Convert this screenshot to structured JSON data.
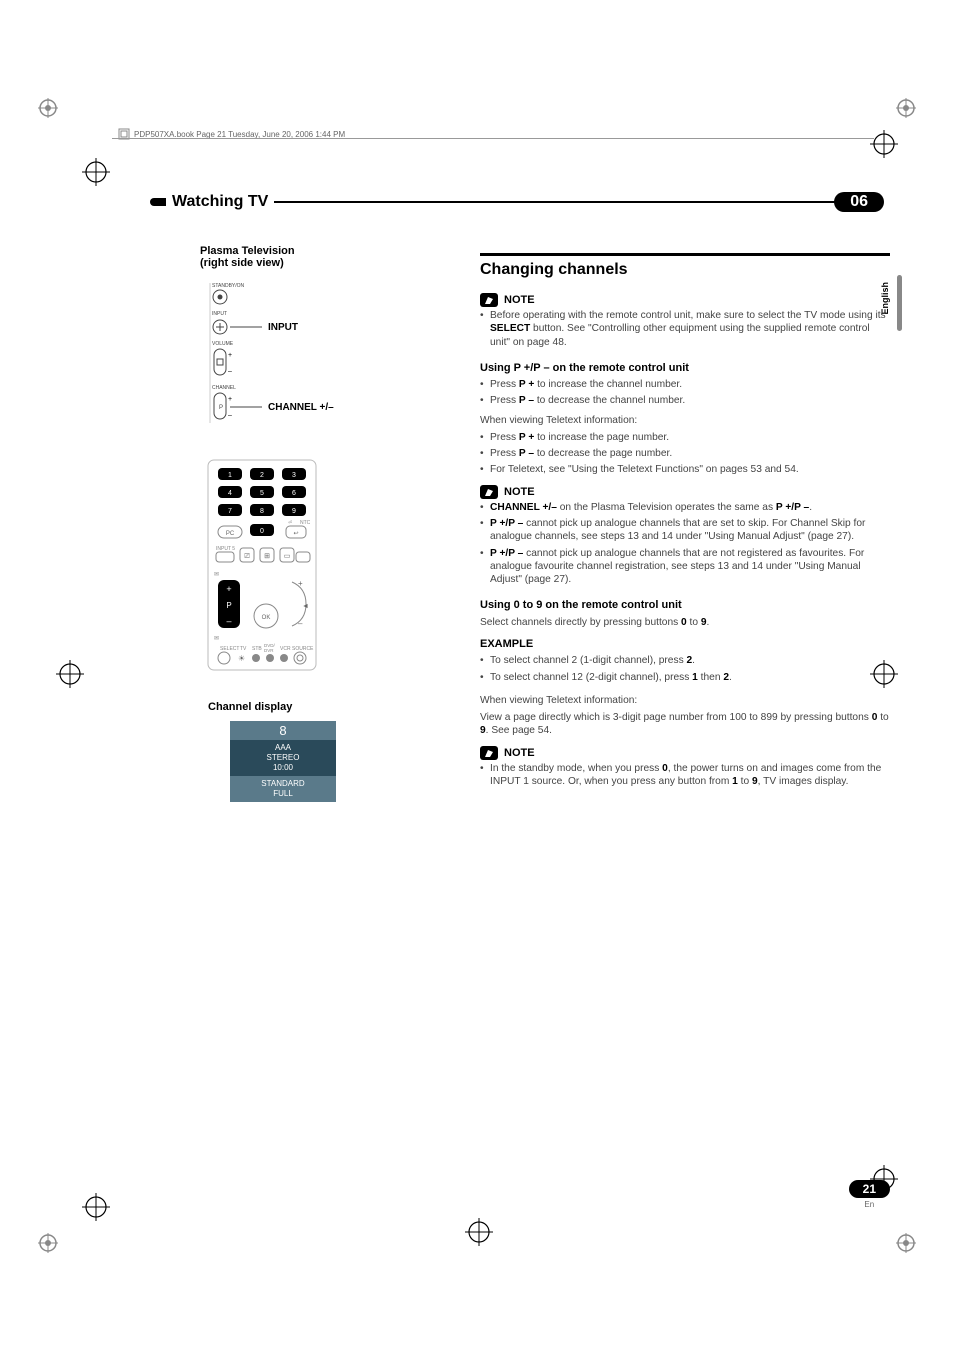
{
  "header": {
    "book_line": "PDP507XA.book  Page 21  Tuesday, June 20, 2006  1:44 PM"
  },
  "chapter": {
    "title": "Watching TV",
    "number": "06"
  },
  "language_tab": "English",
  "left": {
    "plasma_heading_line1": "Plasma Television",
    "plasma_heading_line2": "(right side view)",
    "tv_labels": {
      "input": "INPUT",
      "channel": "CHANNEL +/–",
      "standby": "STANDBY/ON",
      "input_small": "INPUT",
      "volume": "VOLUME",
      "channel_small": "CHANNEL"
    },
    "remote": {
      "btn1": "1",
      "btn2": "2",
      "btn3": "3",
      "btn4": "4",
      "btn5": "5",
      "btn6": "6",
      "btn7": "7",
      "btn8": "8",
      "btn9": "9",
      "btn0": "0",
      "pc": "PC",
      "return": "NTC",
      "input5_label": "INPUT 5",
      "p": "P",
      "ok": "OK",
      "select": "SELECT",
      "tv": "TV",
      "stb": "STB",
      "dvd": "DVD/\nDVR",
      "vcr": "VCR",
      "source": "SOURCE"
    },
    "channel_display_heading": "Channel display",
    "channel_display": {
      "number": "8",
      "name": "AAA",
      "audio": "STEREO",
      "time": "10:00",
      "mode": "STANDARD",
      "aspect": "FULL"
    }
  },
  "right": {
    "section_title": "Changing channels",
    "note_label": "NOTE",
    "note1": {
      "items": [
        "Before operating with the remote control unit, make sure to select the TV mode using its <b>SELECT</b> button. See \"Controlling other equipment using the supplied remote control unit\" on page 48."
      ]
    },
    "using_p_heading": "Using P +/P – on the remote control unit",
    "using_p_items": [
      "Press <b>P +</b> to increase the channel number.",
      "Press <b>P –</b> to decrease the channel number."
    ],
    "teletext_intro": "When viewing Teletext information:",
    "teletext_items": [
      "Press <b>P +</b> to increase the page number.",
      "Press <b>P –</b> to decrease the page number.",
      "For Teletext, see \"Using the Teletext Functions\" on pages 53 and 54."
    ],
    "note2_items": [
      "<b>CHANNEL +/–</b> on the Plasma Television operates the same as <b>P +/P –</b>.",
      "<b>P +/P –</b> cannot pick up analogue channels that are set to skip. For Channel Skip for analogue channels, see steps 13 and 14 under \"Using Manual Adjust\" (page 27).",
      "<b>P +/P –</b> cannot pick up analogue channels that are not registered as favourites. For analogue favourite channel registration, see steps 13 and 14 under \"Using Manual Adjust\" (page 27)."
    ],
    "using_09_heading": "Using 0 to 9 on the remote control unit",
    "using_09_para": "Select channels directly by pressing buttons <b>0</b> to <b>9</b>.",
    "example_heading": "EXAMPLE",
    "example_items": [
      "To select channel 2 (1-digit channel), press <b>2</b>.",
      "To select channel 12 (2-digit channel), press <b>1</b> then <b>2</b>."
    ],
    "teletext2_intro": "When viewing Teletext information:",
    "teletext2_para": "View a page directly which is 3-digit page number from 100 to 899 by pressing buttons <b>0</b> to <b>9</b>. See page 54.",
    "note3_items": [
      "In the standby mode, when you press <b>0</b>, the power turns on and images come from the INPUT 1 source. Or, when you press any button from <b>1</b> to <b>9</b>, TV images display."
    ]
  },
  "page": {
    "num": "21",
    "lang": "En"
  }
}
